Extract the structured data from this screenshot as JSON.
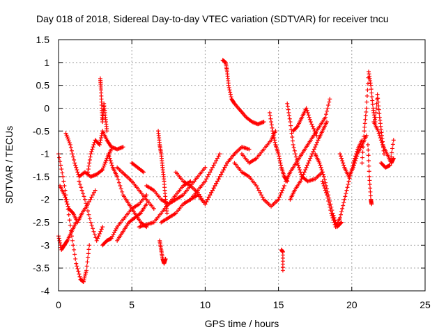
{
  "chart_data": {
    "type": "scatter",
    "title": "Day 018 of 2018, Sidereal Day-to-day VTEC variation (SDTVAR) for receiver tncu",
    "xlabel": "GPS time / hours",
    "ylabel": "SDTVAR / TECUs",
    "xlim": [
      0,
      25
    ],
    "ylim": [
      -4,
      1.5
    ],
    "xticks": [
      0,
      5,
      10,
      15,
      20,
      25
    ],
    "yticks": [
      -4,
      -3.5,
      -3,
      -2.5,
      -2,
      -1.5,
      -1,
      -0.5,
      0,
      0.5,
      1,
      1.5
    ],
    "grid": true,
    "marker": "+",
    "series": [
      {
        "name": "SDTVAR",
        "color": "#ff0000",
        "tracks": [
          {
            "x": [
              0.0,
              0.3,
              0.6,
              0.9,
              1.2,
              1.5,
              1.7
            ],
            "y": [
              -1.0,
              -1.5,
              -2.1,
              -2.8,
              -3.4,
              -3.75,
              -3.8
            ]
          },
          {
            "x": [
              1.7,
              1.9,
              2.1
            ],
            "y": [
              -3.8,
              -3.55,
              -3.0
            ]
          },
          {
            "x": [
              0.0,
              0.2,
              0.4,
              0.6,
              0.9,
              1.2
            ],
            "y": [
              -2.8,
              -3.1,
              -3.0,
              -2.9,
              -2.7,
              -2.5
            ]
          },
          {
            "x": [
              0.1,
              0.4,
              0.7,
              1.0,
              1.3,
              1.6,
              2.0,
              2.5
            ],
            "y": [
              -1.7,
              -1.9,
              -2.2,
              -2.3,
              -2.5,
              -2.3,
              -2.1,
              -1.8
            ]
          },
          {
            "x": [
              0.5,
              0.8,
              1.1,
              1.4,
              1.8,
              2.2,
              2.6,
              3.0,
              3.3,
              3.6
            ],
            "y": [
              -0.55,
              -0.8,
              -1.2,
              -1.5,
              -1.4,
              -1.5,
              -1.45,
              -1.35,
              -1.1,
              -0.9
            ]
          },
          {
            "x": [
              1.4,
              1.8,
              2.2,
              2.6,
              3.0
            ],
            "y": [
              -1.6,
              -2.0,
              -2.5,
              -2.9,
              -2.6
            ]
          },
          {
            "x": [
              2.0,
              2.2,
              2.5,
              2.8,
              3.0,
              3.3,
              3.6,
              4.0,
              4.4
            ],
            "y": [
              -1.4,
              -1.0,
              -0.7,
              -0.8,
              -0.5,
              -0.7,
              -0.85,
              -0.9,
              -0.85
            ]
          },
          {
            "x": [
              2.85,
              2.9,
              2.95,
              3.0,
              3.1,
              3.2,
              3.3
            ],
            "y": [
              0.65,
              0.4,
              0.0,
              -0.3,
              0.1,
              -0.2,
              -0.5
            ]
          },
          {
            "x": [
              3.0,
              3.3,
              3.6,
              4.0,
              4.5,
              5.0,
              5.5,
              6.0
            ],
            "y": [
              -3.0,
              -2.9,
              -2.85,
              -2.6,
              -2.4,
              -2.2,
              -2.1,
              -1.9
            ]
          },
          {
            "x": [
              3.4,
              3.7,
              4.0,
              4.4,
              4.8,
              5.2,
              5.6,
              6.0
            ],
            "y": [
              -1.0,
              -1.3,
              -1.5,
              -1.9,
              -2.1,
              -2.3,
              -2.5,
              -2.6
            ]
          },
          {
            "x": [
              4.0,
              4.5,
              5.0,
              5.5,
              6.0,
              6.5
            ],
            "y": [
              -1.3,
              -1.45,
              -1.6,
              -1.8,
              -2.0,
              -2.2
            ]
          },
          {
            "x": [
              4.0,
              4.4,
              4.8,
              5.2,
              5.6,
              6.0
            ],
            "y": [
              -2.9,
              -2.7,
              -2.5,
              -2.4,
              -2.3,
              -2.1
            ]
          },
          {
            "x": [
              5.0,
              5.4,
              5.8
            ],
            "y": [
              -1.2,
              -1.3,
              -1.4
            ]
          },
          {
            "x": [
              5.5,
              6.0,
              6.5,
              7.0,
              7.5,
              8.0,
              8.5,
              9.0
            ],
            "y": [
              -2.6,
              -2.55,
              -2.5,
              -2.3,
              -2.1,
              -1.9,
              -1.7,
              -1.6
            ]
          },
          {
            "x": [
              6.8,
              6.9,
              7.0,
              7.1,
              7.2,
              7.3,
              7.4
            ],
            "y": [
              -0.5,
              -0.8,
              -1.0,
              -1.3,
              -1.6,
              -2.0,
              -2.3
            ]
          },
          {
            "x": [
              6.9,
              7.0,
              7.1,
              7.2,
              7.3
            ],
            "y": [
              -2.9,
              -3.1,
              -3.3,
              -3.4,
              -3.3
            ]
          },
          {
            "x": [
              6.0,
              6.5,
              7.0,
              7.5,
              8.0,
              8.5,
              9.0,
              9.5,
              10.0
            ],
            "y": [
              -1.7,
              -1.8,
              -2.0,
              -2.1,
              -2.0,
              -1.9,
              -1.7,
              -1.5,
              -1.3
            ]
          },
          {
            "x": [
              7.0,
              7.5,
              8.0,
              8.5,
              9.0,
              9.5,
              10.0,
              10.5,
              11.0
            ],
            "y": [
              -2.5,
              -2.4,
              -2.3,
              -2.1,
              -2.0,
              -1.8,
              -1.6,
              -1.3,
              -1.0
            ]
          },
          {
            "x": [
              8.0,
              8.5,
              9.0,
              9.5,
              10.0,
              10.5,
              11.0,
              11.5,
              12.0
            ],
            "y": [
              -1.4,
              -1.6,
              -1.7,
              -1.85,
              -2.1,
              -1.8,
              -1.5,
              -1.2,
              -1.0
            ]
          },
          {
            "x": [
              9.0,
              9.5,
              10.0,
              10.5,
              11.0,
              11.5,
              12.0,
              12.5,
              13.0
            ],
            "y": [
              -2.0,
              -1.9,
              -2.1,
              -1.8,
              -1.5,
              -1.2,
              -1.0,
              -0.85,
              -0.9
            ]
          },
          {
            "x": [
              11.2,
              11.4,
              11.5,
              11.6,
              11.8,
              12.0,
              12.4,
              12.8,
              13.2,
              13.6,
              14.0
            ],
            "y": [
              1.05,
              1.0,
              0.8,
              0.5,
              0.2,
              0.1,
              -0.05,
              -0.2,
              -0.3,
              -0.35,
              -0.3
            ]
          },
          {
            "x": [
              12.0,
              12.5,
              13.0,
              13.5,
              14.0,
              14.5,
              15.0,
              15.4
            ],
            "y": [
              -1.2,
              -1.4,
              -1.5,
              -1.7,
              -2.0,
              -2.15,
              -2.0,
              -1.7
            ]
          },
          {
            "x": [
              12.5,
              13.0,
              13.5,
              14.0,
              14.5,
              14.8
            ],
            "y": [
              -1.0,
              -1.2,
              -1.1,
              -0.9,
              -0.7,
              -0.5
            ]
          },
          {
            "x": [
              14.4,
              14.6,
              14.8,
              15.0,
              15.2,
              15.4,
              15.6
            ],
            "y": [
              -0.1,
              -0.5,
              -0.8,
              -1.0,
              -1.3,
              -1.5,
              -1.6
            ]
          },
          {
            "x": [
              15.2,
              15.3,
              15.3
            ],
            "y": [
              -3.1,
              -3.15,
              -3.55
            ]
          },
          {
            "x": [
              15.6,
              15.8,
              16.0,
              16.3,
              16.6,
              17.0,
              17.5,
              18.0
            ],
            "y": [
              0.1,
              -0.3,
              -0.8,
              -1.2,
              -1.5,
              -1.6,
              -1.55,
              -1.4
            ]
          },
          {
            "x": [
              15.5,
              15.8,
              16.2,
              16.6,
              17.0,
              17.4,
              17.8,
              18.2,
              18.5
            ],
            "y": [
              -1.6,
              -1.4,
              -1.2,
              -1.0,
              -0.8,
              -0.6,
              -0.4,
              -0.2,
              0.2
            ]
          },
          {
            "x": [
              15.8,
              16.1,
              16.5,
              16.9,
              17.3,
              17.7,
              18.0,
              18.3
            ],
            "y": [
              -2.0,
              -1.8,
              -1.6,
              -1.3,
              -1.0,
              -0.7,
              -0.5,
              -0.3
            ]
          },
          {
            "x": [
              16.0,
              16.3,
              16.6,
              16.9,
              17.2,
              17.6
            ],
            "y": [
              -0.5,
              -0.4,
              -0.2,
              0.0,
              -0.3,
              -0.6
            ]
          },
          {
            "x": [
              17.5,
              17.8,
              18.1,
              18.4,
              18.7,
              19.0,
              19.3
            ],
            "y": [
              -1.0,
              -1.2,
              -1.5,
              -1.9,
              -2.3,
              -2.6,
              -2.5
            ]
          },
          {
            "x": [
              18.0,
              18.3,
              18.6,
              18.9,
              19.2,
              19.5,
              19.8,
              20.1,
              20.4,
              20.7
            ],
            "y": [
              -1.6,
              -1.9,
              -2.3,
              -2.6,
              -2.4,
              -2.0,
              -1.6,
              -1.2,
              -0.9,
              -0.7
            ]
          },
          {
            "x": [
              19.2,
              19.5,
              19.8,
              20.1,
              20.4,
              20.7,
              21.0
            ],
            "y": [
              -1.0,
              -1.3,
              -1.5,
              -1.3,
              -1.0,
              -0.8,
              -0.6
            ]
          },
          {
            "x": [
              20.7,
              20.85,
              21.0,
              21.15,
              21.3,
              21.45,
              21.6,
              21.75,
              21.9,
              22.05,
              22.2
            ],
            "y": [
              -1.2,
              -0.5,
              0.0,
              0.8,
              0.5,
              0.0,
              -0.3,
              0.3,
              -0.2,
              -0.6,
              -1.0
            ]
          },
          {
            "x": [
              21.1,
              21.2,
              21.3,
              21.35
            ],
            "y": [
              -0.8,
              -1.5,
              -2.0,
              -2.1
            ]
          },
          {
            "x": [
              21.5,
              21.8,
              22.1,
              22.4,
              22.7,
              22.85
            ],
            "y": [
              -0.3,
              -0.5,
              -0.8,
              -1.0,
              -1.2,
              -1.1
            ]
          },
          {
            "x": [
              22.0,
              22.3,
              22.6,
              22.85
            ],
            "y": [
              -1.2,
              -1.3,
              -1.25,
              -0.7
            ]
          }
        ]
      }
    ]
  }
}
